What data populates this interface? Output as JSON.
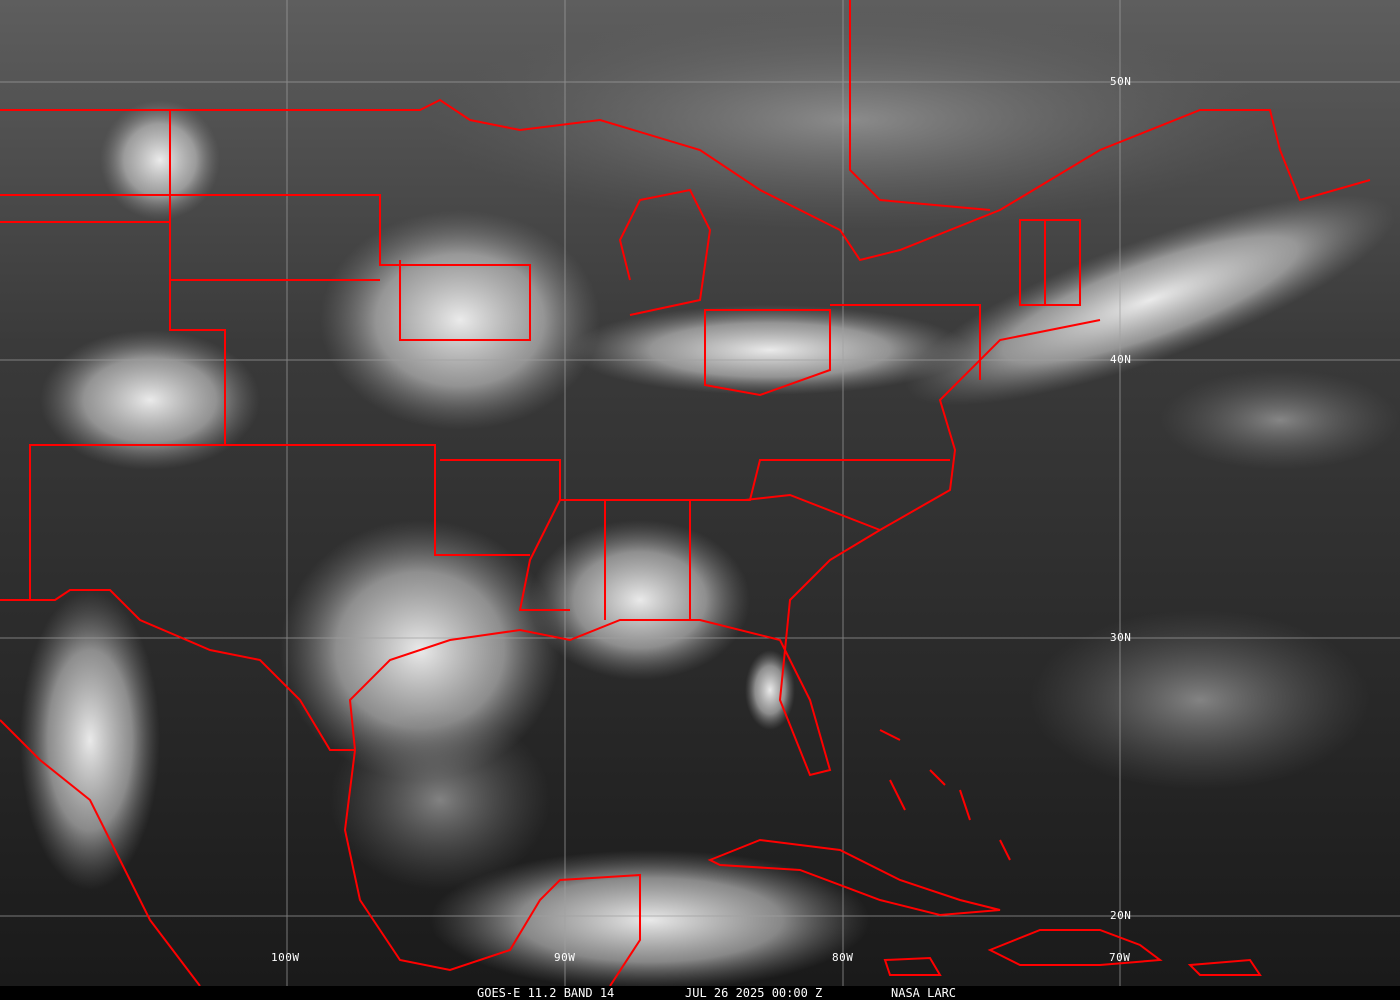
{
  "caption": {
    "satellite": "GOES-E 11.2 BAND 14",
    "datetime": "JUL 26 2025 00:00 Z",
    "source": "NASA LARC"
  },
  "grid": {
    "lat_labels": [
      "50N",
      "40N",
      "30N",
      "20N"
    ],
    "lon_labels": [
      "100W",
      "90W",
      "80W",
      "70W"
    ]
  },
  "colors": {
    "boundaries": "#ff0000",
    "grid": "#a0a0a0",
    "caption_bg": "#000000"
  }
}
